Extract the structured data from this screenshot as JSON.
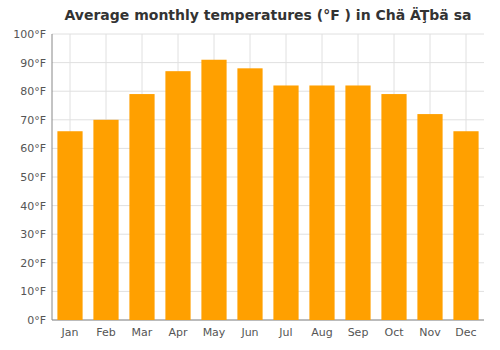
{
  "chart_data": {
    "type": "bar",
    "title": "Average monthly temperatures (°F ) in Chä ÄŢbä sa",
    "categories": [
      "Jan",
      "Feb",
      "Mar",
      "Apr",
      "May",
      "Jun",
      "Jul",
      "Aug",
      "Sep",
      "Oct",
      "Nov",
      "Dec"
    ],
    "values": [
      66,
      70,
      79,
      87,
      91,
      88,
      82,
      82,
      82,
      79,
      72,
      66
    ],
    "color": "#FFA000",
    "ylim": [
      0,
      100
    ],
    "yticks": [
      {
        "value": 0,
        "label": "0°F"
      },
      {
        "value": 10,
        "label": "10°F"
      },
      {
        "value": 20,
        "label": "20°F"
      },
      {
        "value": 30,
        "label": "30°F"
      },
      {
        "value": 40,
        "label": "40°F"
      },
      {
        "value": 50,
        "label": "50°F"
      },
      {
        "value": 60,
        "label": "60°F"
      },
      {
        "value": 70,
        "label": "70°F"
      },
      {
        "value": 80,
        "label": "80°F"
      },
      {
        "value": 90,
        "label": "90°F"
      },
      {
        "value": 100,
        "label": "100°F"
      }
    ],
    "grid": true
  }
}
